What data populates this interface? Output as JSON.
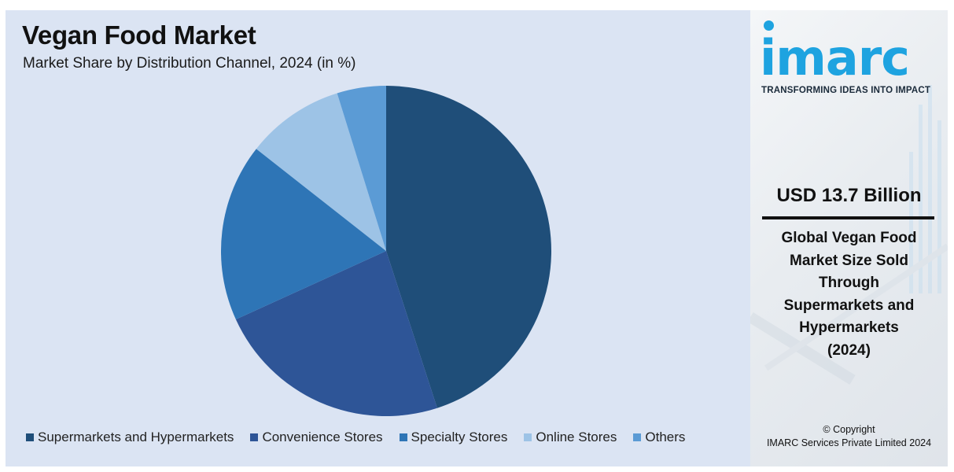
{
  "chart_data": {
    "type": "pie",
    "title": "Vegan Food Market",
    "subtitle": "Market Share by Distribution Channel, 2024 (in %)",
    "categories": [
      "Supermarkets and Hypermarkets",
      "Convenience Stores",
      "Specialty Stores",
      "Online Stores",
      "Others"
    ],
    "values": [
      45.0,
      23.2,
      17.4,
      9.6,
      4.8
    ],
    "colors": [
      "#1f4e79",
      "#2e5597",
      "#2e75b6",
      "#9dc3e6",
      "#5b9bd5"
    ],
    "legend_position": "bottom"
  },
  "legend": {
    "items": [
      {
        "label": "Supermarkets and Hypermarkets",
        "color": "#1f4e79"
      },
      {
        "label": "Convenience Stores",
        "color": "#2e5597"
      },
      {
        "label": "Specialty Stores",
        "color": "#2e75b6"
      },
      {
        "label": "Online Stores",
        "color": "#9dc3e6"
      },
      {
        "label": "Others",
        "color": "#5b9bd5"
      }
    ]
  },
  "info_panel": {
    "logo_text": "imarc",
    "tagline": "TRANSFORMING IDEAS INTO IMPACT",
    "usd_value": "USD 13.7 Billion",
    "description_lines": [
      "Global Vegan Food",
      "Market Size Sold",
      "Through",
      "Supermarkets and",
      "Hypermarkets",
      "(2024)"
    ],
    "copyright_line1": "© Copyright",
    "copyright_line2": "IMARC Services Private Limited 2024"
  },
  "colors": {
    "background": "#dbe4f3",
    "brand": "#1ea3e0"
  }
}
